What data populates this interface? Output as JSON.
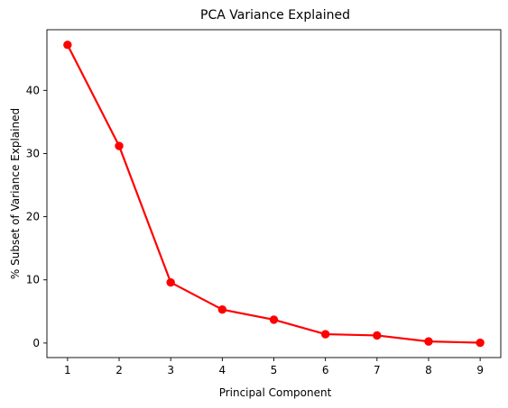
{
  "chart_data": {
    "type": "line",
    "title": "PCA Variance Explained",
    "xlabel": "Principal Component",
    "ylabel": "% Subset of Variance Explained",
    "x": [
      1,
      2,
      3,
      4,
      5,
      6,
      7,
      8,
      9
    ],
    "series": [
      {
        "values": [
          47.2,
          31.2,
          9.6,
          5.3,
          3.7,
          1.4,
          1.2,
          0.25,
          0.05
        ],
        "color": "#ff0000"
      }
    ],
    "xlim": [
      0.6,
      9.4
    ],
    "ylim": [
      -2.3,
      49.6
    ],
    "xticks": [
      1,
      2,
      3,
      4,
      5,
      6,
      7,
      8,
      9
    ],
    "yticks": [
      0,
      10,
      20,
      30,
      40
    ],
    "grid": false,
    "marker": "circle"
  }
}
